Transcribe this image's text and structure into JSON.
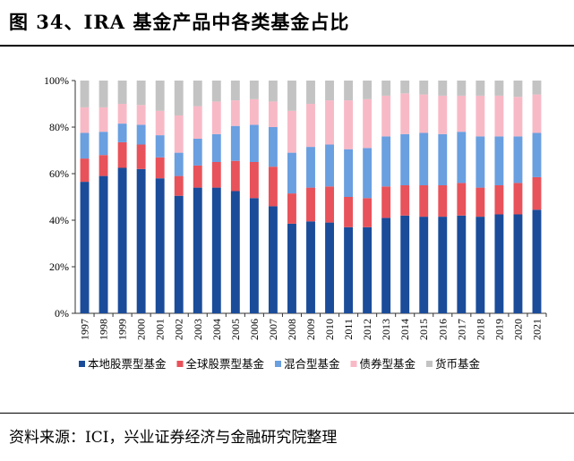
{
  "title": "图 34、IRA 基金产品中各类基金占比",
  "source": "资料来源：ICI，兴业证券经济与金融研究院整理",
  "colors": {
    "本地股票型基金": "#1a4c9a",
    "全球股票型基金": "#e8525a",
    "混合型基金": "#6a9fe0",
    "债券型基金": "#f8b9c6",
    "货币基金": "#c3c3c3"
  },
  "chart_data": {
    "type": "bar",
    "stacked": true,
    "categories": [
      "1997",
      "1998",
      "1999",
      "2000",
      "2001",
      "2002",
      "2003",
      "2004",
      "2005",
      "2006",
      "2007",
      "2008",
      "2009",
      "2010",
      "2011",
      "2012",
      "2013",
      "2014",
      "2015",
      "2016",
      "2017",
      "2018",
      "2019",
      "2020",
      "2021"
    ],
    "series": [
      {
        "name": "本地股票型基金",
        "values": [
          56.5,
          59,
          62.5,
          62,
          58,
          50.5,
          54,
          54,
          52.5,
          49.5,
          46,
          38.5,
          39.5,
          39,
          37,
          37,
          41,
          42,
          41.5,
          41.5,
          42,
          41.5,
          42.5,
          42.5,
          44.5
        ]
      },
      {
        "name": "全球股票型基金",
        "values": [
          10,
          9,
          11,
          10.5,
          9,
          8.5,
          9.5,
          11,
          13,
          15.5,
          17,
          13,
          14.5,
          15.5,
          13,
          12.5,
          13.5,
          13,
          13.5,
          13.5,
          14,
          12.5,
          12.5,
          13.5,
          14
        ]
      },
      {
        "name": "混合型基金",
        "values": [
          11,
          10,
          8,
          8.5,
          9.5,
          10,
          11.5,
          12,
          15,
          16,
          17,
          17.5,
          17.5,
          18,
          20.5,
          21.5,
          21.5,
          22,
          22.5,
          22,
          22,
          22,
          21,
          20,
          19
        ]
      },
      {
        "name": "债券型基金",
        "values": [
          11,
          10.5,
          8.5,
          8.5,
          10.5,
          16,
          14,
          14,
          11,
          11,
          11,
          18,
          18.5,
          19,
          21,
          21,
          17.5,
          17.5,
          16.5,
          16.5,
          15.5,
          17.5,
          17.5,
          17,
          16.5
        ]
      },
      {
        "name": "货币基金",
        "values": [
          11.5,
          11.5,
          10,
          10.5,
          13,
          15,
          11,
          9,
          8.5,
          8,
          9,
          13,
          10,
          8.5,
          8.5,
          8,
          6.5,
          5.5,
          6,
          6.5,
          6.5,
          6.5,
          6.5,
          7,
          6
        ]
      }
    ],
    "yticks": [
      "0%",
      "20%",
      "40%",
      "60%",
      "80%",
      "100%"
    ],
    "ylim": [
      0,
      100
    ],
    "legend_position": "bottom",
    "xlabel": "",
    "ylabel": ""
  }
}
